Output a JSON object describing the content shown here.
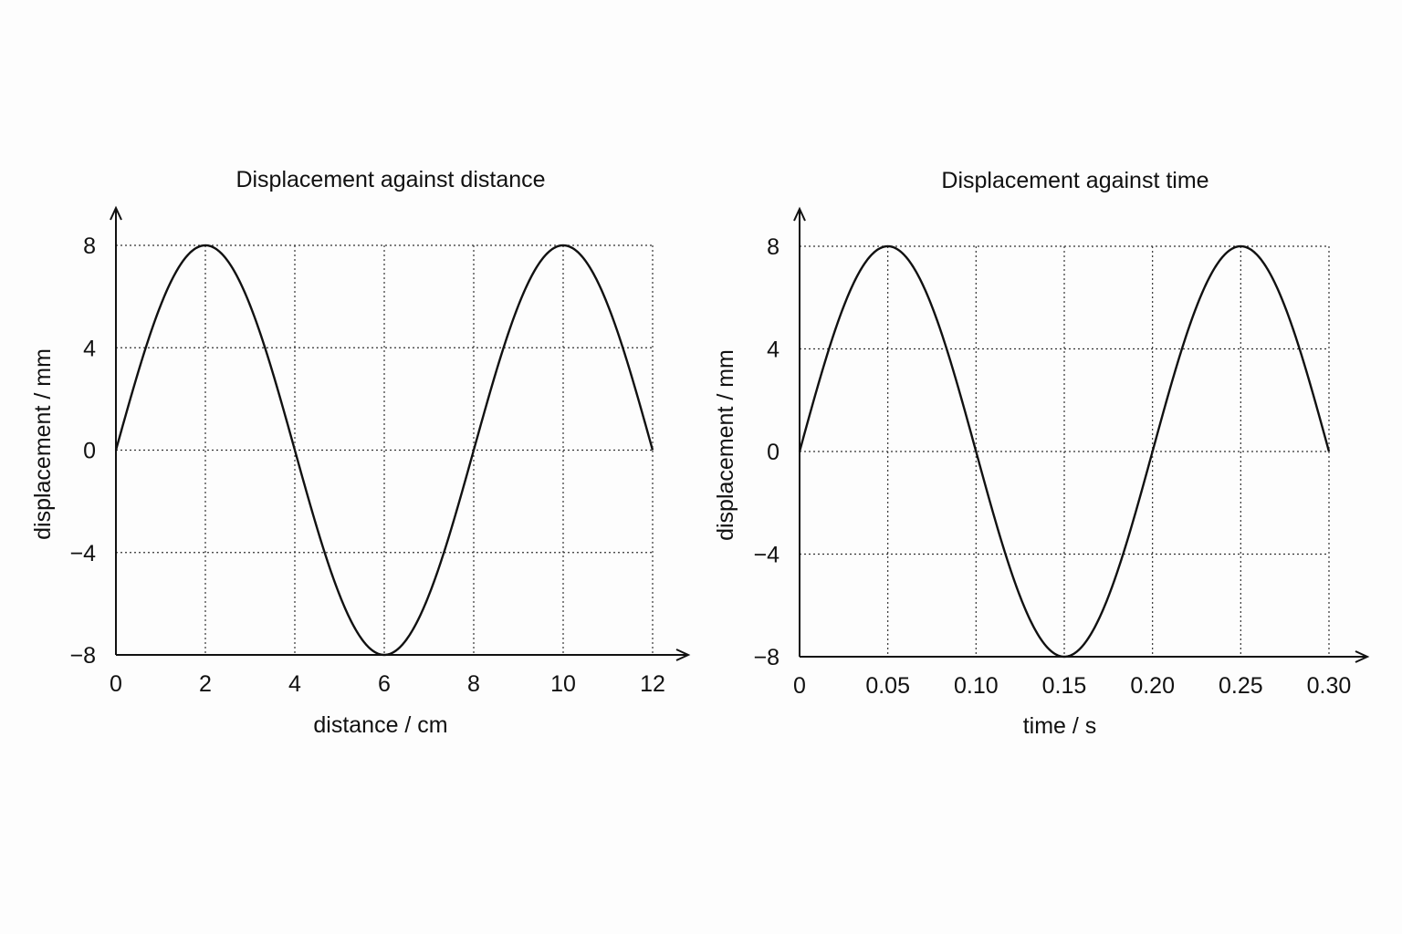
{
  "chart_data": [
    {
      "type": "line",
      "title": "Displacement against distance",
      "xlabel": "distance / cm",
      "ylabel": "displacement / mm",
      "xlim": [
        0,
        12
      ],
      "ylim": [
        -8,
        8
      ],
      "xticks": [
        0,
        2,
        4,
        6,
        8,
        10,
        12
      ],
      "xtick_labels": [
        "0",
        "2",
        "4",
        "6",
        "8",
        "10",
        "12"
      ],
      "yticks": [
        -8,
        -4,
        0,
        4,
        8
      ],
      "ytick_labels": [
        "−8",
        "−4",
        "0",
        "4",
        "8"
      ],
      "grid": true,
      "legend": "none",
      "series": [
        {
          "x": [
            0,
            0.5,
            1,
            1.5,
            2,
            2.5,
            3,
            3.5,
            4,
            4.5,
            5,
            5.5,
            6,
            6.5,
            7,
            7.5,
            8,
            8.5,
            9,
            9.5,
            10,
            10.5,
            11,
            11.5,
            12
          ],
          "values": [
            0,
            3.06,
            5.66,
            7.39,
            8,
            7.39,
            5.66,
            3.06,
            0,
            -3.06,
            -5.66,
            -7.39,
            -8,
            -7.39,
            -5.66,
            -3.06,
            0,
            3.06,
            5.66,
            7.39,
            8,
            7.39,
            5.66,
            3.06,
            0
          ]
        }
      ]
    },
    {
      "type": "line",
      "title": "Displacement against time",
      "xlabel": "time / s",
      "ylabel": "displacement / mm",
      "xlim": [
        0,
        0.3
      ],
      "ylim": [
        -8,
        8
      ],
      "xticks": [
        0,
        0.05,
        0.1,
        0.15,
        0.2,
        0.25,
        0.3
      ],
      "xtick_labels": [
        "0",
        "0.05",
        "0.10",
        "0.15",
        "0.20",
        "0.25",
        "0.30"
      ],
      "yticks": [
        -8,
        -4,
        0,
        4,
        8
      ],
      "ytick_labels": [
        "−8",
        "−4",
        "0",
        "4",
        "8"
      ],
      "grid": true,
      "legend": "none",
      "series": [
        {
          "x": [
            0,
            0.0125,
            0.025,
            0.0375,
            0.05,
            0.0625,
            0.075,
            0.0875,
            0.1,
            0.1125,
            0.125,
            0.1375,
            0.15,
            0.1625,
            0.175,
            0.1875,
            0.2,
            0.2125,
            0.225,
            0.2375,
            0.25,
            0.2625,
            0.275,
            0.2875,
            0.3
          ],
          "values": [
            0,
            3.06,
            5.66,
            7.39,
            8,
            7.39,
            5.66,
            3.06,
            0,
            -3.06,
            -5.66,
            -7.39,
            -8,
            -7.39,
            -5.66,
            -3.06,
            0,
            3.06,
            5.66,
            7.39,
            8,
            7.39,
            5.66,
            3.06,
            0
          ]
        }
      ]
    }
  ]
}
